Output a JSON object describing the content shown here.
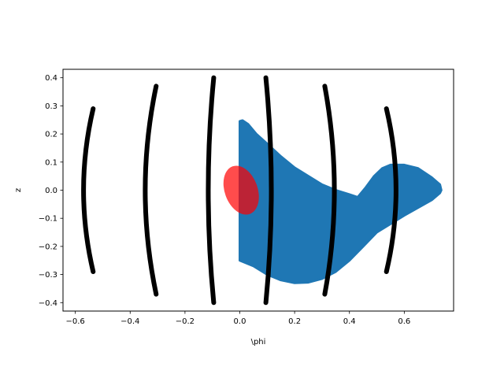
{
  "chart_data": {
    "type": "scatter",
    "title": "",
    "xlabel": "\\phi",
    "ylabel": "z",
    "xlim": [
      -0.645,
      0.78
    ],
    "ylim": [
      -0.43,
      0.43
    ],
    "grid": false,
    "x_ticks": [
      -0.6,
      -0.4,
      -0.2,
      0.0,
      0.2,
      0.4,
      0.6
    ],
    "x_tick_labels": [
      "−0.6",
      "−0.4",
      "−0.2",
      "0.0",
      "0.2",
      "0.4",
      "0.6"
    ],
    "y_ticks": [
      -0.4,
      -0.3,
      -0.2,
      -0.1,
      0.0,
      0.1,
      0.2,
      0.3,
      0.4
    ],
    "y_tick_labels": [
      "−0.4",
      "−0.3",
      "−0.2",
      "−0.1",
      "0.0",
      "0.1",
      "0.2",
      "0.3",
      "0.4"
    ],
    "series": [
      {
        "color": "#1f77b4",
        "shape": "filled-region",
        "points": [
          [
            0.0,
            0.245
          ],
          [
            0.01,
            0.248
          ],
          [
            0.03,
            0.235
          ],
          [
            0.06,
            0.2
          ],
          [
            0.1,
            0.165
          ],
          [
            0.15,
            0.12
          ],
          [
            0.2,
            0.08
          ],
          [
            0.25,
            0.05
          ],
          [
            0.3,
            0.02
          ],
          [
            0.35,
            0.0
          ],
          [
            0.4,
            -0.015
          ],
          [
            0.43,
            -0.025
          ],
          [
            0.46,
            0.01
          ],
          [
            0.49,
            0.05
          ],
          [
            0.52,
            0.078
          ],
          [
            0.55,
            0.09
          ],
          [
            0.6,
            0.09
          ],
          [
            0.65,
            0.078
          ],
          [
            0.7,
            0.045
          ],
          [
            0.73,
            0.02
          ],
          [
            0.735,
            0.0
          ],
          [
            0.73,
            -0.01
          ],
          [
            0.7,
            -0.035
          ],
          [
            0.6,
            -0.09
          ],
          [
            0.5,
            -0.15
          ],
          [
            0.45,
            -0.2
          ],
          [
            0.4,
            -0.25
          ],
          [
            0.35,
            -0.29
          ],
          [
            0.3,
            -0.315
          ],
          [
            0.25,
            -0.328
          ],
          [
            0.2,
            -0.33
          ],
          [
            0.15,
            -0.32
          ],
          [
            0.1,
            -0.3
          ],
          [
            0.05,
            -0.27
          ],
          [
            0.0,
            -0.25
          ]
        ]
      },
      {
        "color": "#ff0000",
        "opacity": 0.7,
        "shape": "ellipse",
        "center": [
          0.005,
          0.0
        ],
        "radius_x": 0.06,
        "radius_y": 0.09,
        "rotation_deg": -20
      },
      {
        "color": "#000000",
        "shape": "arc-markers",
        "arcs": [
          {
            "x_mid": -0.57,
            "x_end": -0.535,
            "z_half": 0.29
          },
          {
            "x_mid": -0.345,
            "x_end": -0.305,
            "z_half": 0.37
          },
          {
            "x_mid": -0.115,
            "x_end": -0.095,
            "z_half": 0.4
          },
          {
            "x_mid": 0.115,
            "x_end": 0.095,
            "z_half": 0.4
          },
          {
            "x_mid": 0.345,
            "x_end": 0.31,
            "z_half": 0.37
          },
          {
            "x_mid": 0.57,
            "x_end": 0.535,
            "z_half": 0.29
          }
        ]
      }
    ]
  }
}
